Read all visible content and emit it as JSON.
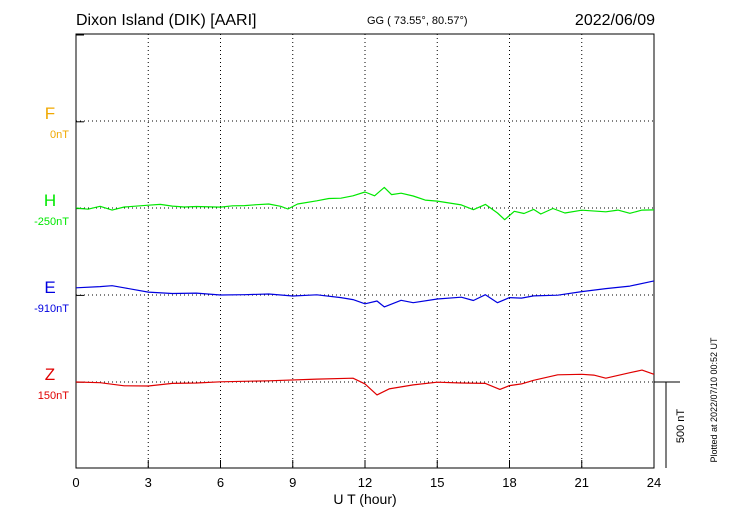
{
  "header": {
    "station": "Dixon Island (DIK)  [AARI]",
    "coords": "GG ( 73.55°,  80.57°)",
    "date": "2022/06/09"
  },
  "footer": {
    "plotted": "Plotted at 2022/07/10 00:52 UT"
  },
  "chart_data": {
    "type": "line",
    "title": "Dixon Island (DIK)  [AARI]",
    "xlabel": "U T (hour)",
    "xlim": [
      0,
      24
    ],
    "xticks": [
      0,
      3,
      6,
      9,
      12,
      15,
      18,
      21,
      24
    ],
    "grid": true,
    "scale_bar": {
      "label": "500 nT",
      "value": 500
    },
    "series": [
      {
        "name": "F",
        "baseline_label": "0nT",
        "color": "#f0a800",
        "baseline": 0,
        "points": []
      },
      {
        "name": "H",
        "baseline_label": "-250nT",
        "color": "#00e800",
        "baseline": -250,
        "points": [
          [
            0,
            -250
          ],
          [
            0.5,
            -257
          ],
          [
            1,
            -240
          ],
          [
            1.5,
            -262
          ],
          [
            2,
            -244
          ],
          [
            3,
            -234
          ],
          [
            3.5,
            -229
          ],
          [
            4,
            -239
          ],
          [
            4.5,
            -244
          ],
          [
            5,
            -241
          ],
          [
            6,
            -245
          ],
          [
            6.5,
            -237
          ],
          [
            7,
            -236
          ],
          [
            7.5,
            -231
          ],
          [
            8,
            -227
          ],
          [
            8.5,
            -240
          ],
          [
            8.8,
            -256
          ],
          [
            9.2,
            -227
          ],
          [
            10,
            -208
          ],
          [
            10.5,
            -195
          ],
          [
            11,
            -193
          ],
          [
            11.5,
            -179
          ],
          [
            12,
            -157
          ],
          [
            12.4,
            -179
          ],
          [
            12.8,
            -130
          ],
          [
            13.1,
            -172
          ],
          [
            13.5,
            -164
          ],
          [
            14,
            -180
          ],
          [
            14.5,
            -204
          ],
          [
            15,
            -210
          ],
          [
            16,
            -232
          ],
          [
            16.5,
            -260
          ],
          [
            17,
            -229
          ],
          [
            17.5,
            -279
          ],
          [
            17.8,
            -318
          ],
          [
            18.2,
            -269
          ],
          [
            18.6,
            -282
          ],
          [
            19,
            -258
          ],
          [
            19.3,
            -285
          ],
          [
            19.8,
            -253
          ],
          [
            20.3,
            -279
          ],
          [
            21,
            -263
          ],
          [
            22,
            -272
          ],
          [
            22.5,
            -262
          ],
          [
            23,
            -281
          ],
          [
            23.5,
            -262
          ],
          [
            24,
            -261
          ]
        ]
      },
      {
        "name": "E",
        "baseline_label": "-910nT",
        "color": "#0000e0",
        "baseline": -910,
        "points": [
          [
            0,
            -868
          ],
          [
            1,
            -861
          ],
          [
            1.5,
            -856
          ],
          [
            2,
            -868
          ],
          [
            3,
            -893
          ],
          [
            4,
            -901
          ],
          [
            5,
            -899
          ],
          [
            6,
            -910
          ],
          [
            7,
            -908
          ],
          [
            8,
            -904
          ],
          [
            9,
            -916
          ],
          [
            10,
            -909
          ],
          [
            11,
            -925
          ],
          [
            11.5,
            -937
          ],
          [
            12,
            -961
          ],
          [
            12.5,
            -945
          ],
          [
            12.8,
            -979
          ],
          [
            13.5,
            -941
          ],
          [
            14,
            -955
          ],
          [
            15,
            -933
          ],
          [
            16,
            -923
          ],
          [
            16.5,
            -942
          ],
          [
            17,
            -908
          ],
          [
            17.5,
            -955
          ],
          [
            18,
            -925
          ],
          [
            18.5,
            -928
          ],
          [
            19,
            -915
          ],
          [
            20,
            -911
          ],
          [
            21,
            -890
          ],
          [
            22,
            -873
          ],
          [
            23,
            -858
          ],
          [
            24,
            -828
          ]
        ]
      },
      {
        "name": "Z",
        "baseline_label": "150nT",
        "color": "#e00000",
        "baseline": 150,
        "points": [
          [
            0,
            150
          ],
          [
            1,
            146
          ],
          [
            2,
            128
          ],
          [
            3,
            127
          ],
          [
            4,
            142
          ],
          [
            5,
            144
          ],
          [
            6,
            151
          ],
          [
            8,
            157
          ],
          [
            10,
            167
          ],
          [
            11.5,
            172
          ],
          [
            12,
            139
          ],
          [
            12.5,
            75
          ],
          [
            13,
            110
          ],
          [
            14,
            133
          ],
          [
            15,
            149
          ],
          [
            16,
            144
          ],
          [
            17,
            142
          ],
          [
            17.6,
            107
          ],
          [
            18,
            129
          ],
          [
            18.5,
            139
          ],
          [
            19,
            160
          ],
          [
            20,
            192
          ],
          [
            21,
            195
          ],
          [
            21.5,
            190
          ],
          [
            22,
            172
          ],
          [
            23,
            204
          ],
          [
            23.5,
            219
          ],
          [
            24,
            195
          ]
        ]
      }
    ]
  }
}
